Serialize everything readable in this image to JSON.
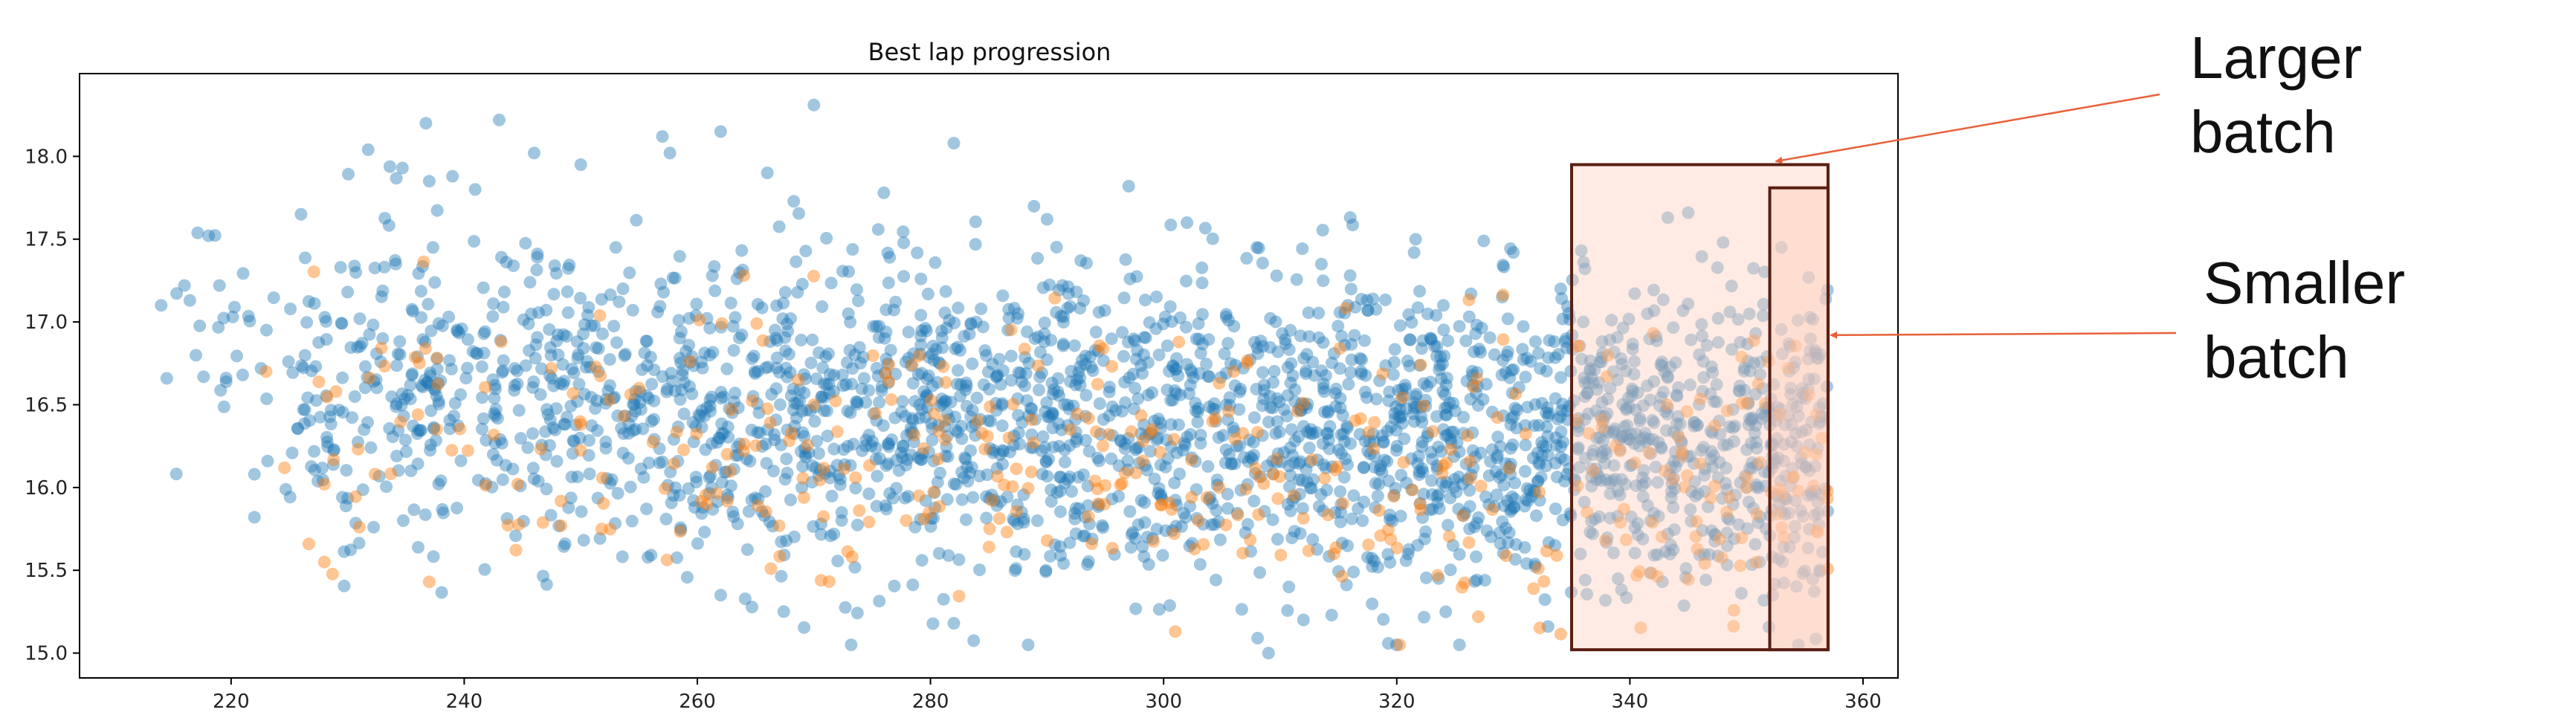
{
  "chart_data": {
    "type": "scatter",
    "title": "Best lap progression",
    "xlabel": "",
    "ylabel": "",
    "xlim": [
      207,
      363
    ],
    "ylim": [
      14.85,
      18.5
    ],
    "x_ticks": [
      220,
      240,
      260,
      280,
      300,
      320,
      340,
      360
    ],
    "y_ticks": [
      15.0,
      15.5,
      16.0,
      16.5,
      17.0,
      17.5,
      18.0
    ],
    "grid": false,
    "series": [
      {
        "color": "#1f77b4",
        "alpha": 0.42,
        "count": 2600,
        "description": "dense cloud, x 214–357, centred near y 16.3–16.5, spread ~0.45"
      },
      {
        "color": "#ff7f0e",
        "alpha": 0.45,
        "count": 380,
        "description": "sparser cloud mixed within main cloud"
      }
    ],
    "sample_points_blue": [
      [
        214,
        17.1
      ],
      [
        216,
        17.22
      ],
      [
        219,
        17.22
      ],
      [
        221,
        16.68
      ],
      [
        222,
        16.08
      ],
      [
        222,
        15.82
      ],
      [
        226,
        17.65
      ],
      [
        230,
        17.18
      ],
      [
        233,
        16.9
      ],
      [
        237,
        17.85
      ],
      [
        239,
        17.88
      ],
      [
        243,
        18.22
      ],
      [
        246,
        18.02
      ],
      [
        250,
        17.95
      ],
      [
        253,
        17.45
      ],
      [
        257,
        18.12
      ],
      [
        262,
        18.15
      ],
      [
        266,
        17.9
      ],
      [
        270,
        18.31
      ],
      [
        276,
        17.78
      ],
      [
        282,
        18.08
      ],
      [
        290,
        17.62
      ],
      [
        297,
        17.82
      ],
      [
        302,
        17.6
      ],
      [
        308,
        17.45
      ],
      [
        316,
        17.28
      ],
      [
        324,
        17.1
      ],
      [
        330,
        17.42
      ],
      [
        336,
        17.0
      ],
      [
        345,
        17.66
      ],
      [
        348,
        17.48
      ],
      [
        353,
        17.45
      ],
      [
        309,
        15.0
      ],
      [
        312,
        15.2
      ],
      [
        282,
        15.18
      ],
      [
        262,
        15.35
      ]
    ],
    "sample_points_orange": [
      [
        223,
        16.7
      ],
      [
        228,
        16.02
      ],
      [
        228,
        15.55
      ],
      [
        229,
        16.58
      ],
      [
        231,
        15.76
      ],
      [
        237,
        15.43
      ],
      [
        255,
        16.6
      ],
      [
        264,
        17.28
      ],
      [
        270,
        16.5
      ],
      [
        279,
        15.95
      ],
      [
        292,
        16.35
      ],
      [
        301,
        15.13
      ],
      [
        306,
        16.7
      ],
      [
        322,
        15.9
      ],
      [
        327,
        15.22
      ],
      [
        343,
        16.1
      ],
      [
        350,
        16.0
      ],
      [
        356,
        16.2
      ]
    ],
    "annotations": [
      {
        "label": "Larger\nbatch",
        "label_lines": [
          "Larger",
          "batch"
        ],
        "x_range": [
          335,
          357
        ],
        "y_range": [
          15.02,
          17.95
        ],
        "arrow_target": [
          352.5,
          17.97
        ],
        "color": "#e8613a"
      },
      {
        "label": "Smaller\nbatch",
        "label_lines": [
          "Smaller",
          "batch"
        ],
        "x_range": [
          352,
          357
        ],
        "y_range": [
          15.02,
          17.81
        ],
        "arrow_target": [
          357.2,
          16.92
        ],
        "color": "#e8613a"
      }
    ]
  }
}
